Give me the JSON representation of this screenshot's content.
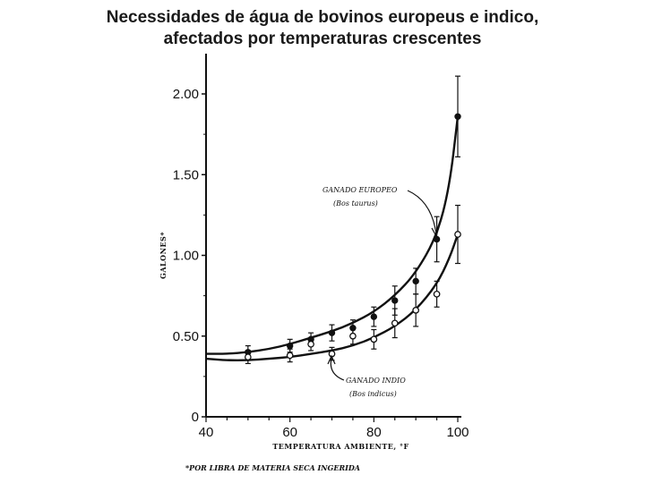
{
  "title": {
    "line1": "Necessidades de água de bovinos europeus e indico,",
    "line2": "afectados por temperaturas crescentes"
  },
  "chart_data": {
    "type": "line",
    "xlabel": "TEMPERATURA AMBIENTE, °F",
    "ylabel": "GALONES*",
    "footnote": "*POR LIBRA DE MATERIA SECA INGERIDA",
    "xlim": [
      40,
      100
    ],
    "ylim": [
      0,
      2.25
    ],
    "x_ticks": [
      "40",
      "60",
      "80",
      "100"
    ],
    "y_ticks": [
      "0",
      "0.50",
      "1.00",
      "1.50",
      "2.00"
    ],
    "grid": false,
    "series": [
      {
        "name_line1": "GANADO EUROPEO",
        "name_line2": "(Bos taurus)",
        "marker": "filled-circle",
        "curve": {
          "x": [
            40,
            45,
            50,
            55,
            60,
            65,
            70,
            75,
            80,
            85,
            90,
            95,
            98,
            100
          ],
          "y": [
            0.39,
            0.39,
            0.4,
            0.42,
            0.45,
            0.49,
            0.53,
            0.58,
            0.65,
            0.75,
            0.89,
            1.12,
            1.42,
            1.86
          ]
        },
        "points": [
          {
            "x": 50,
            "y": 0.4,
            "err": 0.04
          },
          {
            "x": 60,
            "y": 0.44,
            "err": 0.04
          },
          {
            "x": 65,
            "y": 0.48,
            "err": 0.04
          },
          {
            "x": 70,
            "y": 0.52,
            "err": 0.05
          },
          {
            "x": 75,
            "y": 0.55,
            "err": 0.05
          },
          {
            "x": 80,
            "y": 0.62,
            "err": 0.06
          },
          {
            "x": 85,
            "y": 0.72,
            "err": 0.09
          },
          {
            "x": 90,
            "y": 0.84,
            "err": 0.08
          },
          {
            "x": 95,
            "y": 1.1,
            "err": 0.14
          },
          {
            "x": 100,
            "y": 1.86,
            "err": 0.25
          }
        ]
      },
      {
        "name_line1": "GANADO INDIO",
        "name_line2": "(Bos indicus)",
        "marker": "open-circle",
        "curve": {
          "x": [
            40,
            45,
            50,
            55,
            60,
            65,
            70,
            75,
            80,
            85,
            90,
            95,
            98,
            100
          ],
          "y": [
            0.36,
            0.35,
            0.35,
            0.36,
            0.37,
            0.39,
            0.41,
            0.44,
            0.49,
            0.56,
            0.66,
            0.82,
            0.98,
            1.13
          ]
        },
        "points": [
          {
            "x": 50,
            "y": 0.37,
            "err": 0.04
          },
          {
            "x": 60,
            "y": 0.38,
            "err": 0.04
          },
          {
            "x": 65,
            "y": 0.45,
            "err": 0.04
          },
          {
            "x": 70,
            "y": 0.39,
            "err": 0.04
          },
          {
            "x": 75,
            "y": 0.5,
            "err": 0.05
          },
          {
            "x": 80,
            "y": 0.48,
            "err": 0.06
          },
          {
            "x": 85,
            "y": 0.58,
            "err": 0.09
          },
          {
            "x": 90,
            "y": 0.66,
            "err": 0.1
          },
          {
            "x": 95,
            "y": 0.76,
            "err": 0.08
          },
          {
            "x": 100,
            "y": 1.13,
            "err": 0.18
          }
        ]
      }
    ]
  }
}
